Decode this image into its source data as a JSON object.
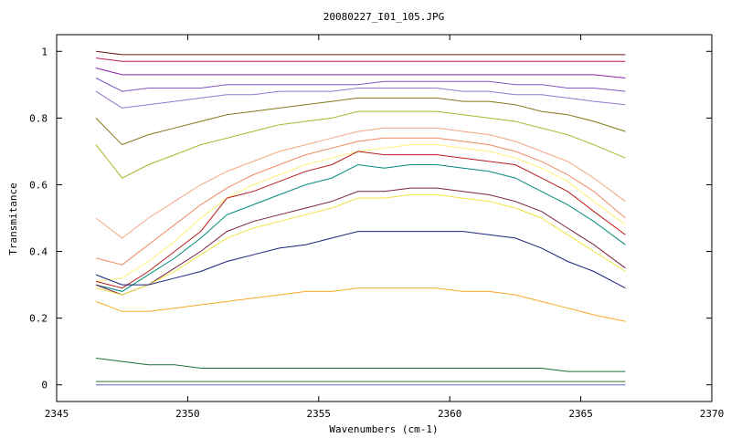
{
  "chart_data": {
    "type": "line",
    "title": "20080227_I01_105.JPG",
    "xlabel": "Wavenumbers (cm-1)",
    "ylabel": "Transmitance",
    "xlim": [
      2345,
      2370
    ],
    "ylim": [
      -0.05,
      1.05
    ],
    "x_ticks": [
      "2345",
      "2350",
      "2355",
      "2360",
      "2365",
      "2370"
    ],
    "y_ticks": [
      "0",
      "0.2",
      "0.4",
      "0.6",
      "0.8",
      "1"
    ],
    "grid": false,
    "legend": "none",
    "x": [
      2346.5,
      2347.5,
      2348.5,
      2349.5,
      2350.5,
      2351.5,
      2352.5,
      2353.5,
      2354.5,
      2355.5,
      2356.5,
      2357.5,
      2358.5,
      2359.5,
      2360.5,
      2361.5,
      2362.5,
      2363.5,
      2364.5,
      2365.5,
      2366.7
    ],
    "series": [
      {
        "color": "#6a1b1b",
        "values": [
          1.0,
          0.99,
          0.99,
          0.99,
          0.99,
          0.99,
          0.99,
          0.99,
          0.99,
          0.99,
          0.99,
          0.99,
          0.99,
          0.99,
          0.99,
          0.99,
          0.99,
          0.99,
          0.99,
          0.99,
          0.99
        ]
      },
      {
        "color": "#c2185b",
        "values": [
          0.98,
          0.97,
          0.97,
          0.97,
          0.97,
          0.97,
          0.97,
          0.97,
          0.97,
          0.97,
          0.97,
          0.97,
          0.97,
          0.97,
          0.97,
          0.97,
          0.97,
          0.97,
          0.97,
          0.97,
          0.97
        ]
      },
      {
        "color": "#8e24aa",
        "values": [
          0.95,
          0.93,
          0.93,
          0.93,
          0.93,
          0.93,
          0.93,
          0.93,
          0.93,
          0.93,
          0.93,
          0.93,
          0.93,
          0.93,
          0.93,
          0.93,
          0.93,
          0.93,
          0.93,
          0.93,
          0.92
        ]
      },
      {
        "color": "#7e57c2",
        "values": [
          0.92,
          0.88,
          0.89,
          0.89,
          0.89,
          0.9,
          0.9,
          0.9,
          0.9,
          0.9,
          0.9,
          0.91,
          0.91,
          0.91,
          0.91,
          0.91,
          0.9,
          0.9,
          0.89,
          0.89,
          0.88
        ]
      },
      {
        "color": "#9575cd",
        "values": [
          0.88,
          0.83,
          0.84,
          0.85,
          0.86,
          0.87,
          0.87,
          0.88,
          0.88,
          0.88,
          0.89,
          0.89,
          0.89,
          0.89,
          0.88,
          0.88,
          0.87,
          0.87,
          0.86,
          0.85,
          0.84
        ]
      },
      {
        "color": "#827717",
        "values": [
          0.8,
          0.72,
          0.75,
          0.77,
          0.79,
          0.81,
          0.82,
          0.83,
          0.84,
          0.85,
          0.86,
          0.86,
          0.86,
          0.86,
          0.85,
          0.85,
          0.84,
          0.82,
          0.81,
          0.79,
          0.76
        ]
      },
      {
        "color": "#afb42b",
        "values": [
          0.72,
          0.62,
          0.66,
          0.69,
          0.72,
          0.74,
          0.76,
          0.78,
          0.79,
          0.8,
          0.82,
          0.82,
          0.82,
          0.82,
          0.81,
          0.8,
          0.79,
          0.77,
          0.75,
          0.72,
          0.68
        ]
      },
      {
        "color": "#f4a582",
        "values": [
          0.5,
          0.44,
          0.5,
          0.55,
          0.6,
          0.64,
          0.67,
          0.7,
          0.72,
          0.74,
          0.76,
          0.77,
          0.77,
          0.77,
          0.76,
          0.75,
          0.73,
          0.7,
          0.67,
          0.62,
          0.55
        ]
      },
      {
        "color": "#ef8a62",
        "values": [
          0.38,
          0.36,
          0.42,
          0.48,
          0.54,
          0.59,
          0.63,
          0.66,
          0.69,
          0.71,
          0.73,
          0.74,
          0.74,
          0.74,
          0.73,
          0.72,
          0.7,
          0.67,
          0.63,
          0.58,
          0.5
        ]
      },
      {
        "color": "#fff176",
        "values": [
          0.31,
          0.32,
          0.37,
          0.43,
          0.5,
          0.56,
          0.6,
          0.63,
          0.66,
          0.68,
          0.7,
          0.71,
          0.72,
          0.72,
          0.71,
          0.7,
          0.68,
          0.65,
          0.61,
          0.55,
          0.48
        ]
      },
      {
        "color": "#b71c1c",
        "values": [
          0.31,
          0.29,
          0.34,
          0.4,
          0.46,
          0.56,
          0.58,
          0.61,
          0.64,
          0.66,
          0.7,
          0.69,
          0.69,
          0.69,
          0.68,
          0.67,
          0.66,
          0.62,
          0.58,
          0.52,
          0.45
        ]
      },
      {
        "color": "#00897b",
        "values": [
          0.3,
          0.28,
          0.33,
          0.38,
          0.44,
          0.51,
          0.54,
          0.57,
          0.6,
          0.62,
          0.66,
          0.65,
          0.66,
          0.66,
          0.65,
          0.64,
          0.62,
          0.58,
          0.54,
          0.49,
          0.42
        ]
      },
      {
        "color": "#7b1f3f",
        "values": [
          0.3,
          0.27,
          0.3,
          0.35,
          0.4,
          0.46,
          0.49,
          0.51,
          0.53,
          0.55,
          0.58,
          0.58,
          0.59,
          0.59,
          0.58,
          0.57,
          0.55,
          0.52,
          0.47,
          0.42,
          0.35
        ]
      },
      {
        "color": "#f0e442",
        "values": [
          0.29,
          0.27,
          0.3,
          0.34,
          0.39,
          0.44,
          0.47,
          0.49,
          0.51,
          0.53,
          0.56,
          0.56,
          0.57,
          0.57,
          0.56,
          0.55,
          0.53,
          0.5,
          0.45,
          0.4,
          0.34
        ]
      },
      {
        "color": "#1a237e",
        "values": [
          0.33,
          0.3,
          0.3,
          0.32,
          0.34,
          0.37,
          0.39,
          0.41,
          0.42,
          0.44,
          0.46,
          0.46,
          0.46,
          0.46,
          0.46,
          0.45,
          0.44,
          0.41,
          0.37,
          0.34,
          0.29
        ]
      },
      {
        "color": "#f9a825",
        "values": [
          0.25,
          0.22,
          0.22,
          0.23,
          0.24,
          0.25,
          0.26,
          0.27,
          0.28,
          0.28,
          0.29,
          0.29,
          0.29,
          0.29,
          0.28,
          0.28,
          0.27,
          0.25,
          0.23,
          0.21,
          0.19
        ]
      },
      {
        "color": "#1b6e3b",
        "values": [
          0.08,
          0.07,
          0.06,
          0.06,
          0.05,
          0.05,
          0.05,
          0.05,
          0.05,
          0.05,
          0.05,
          0.05,
          0.05,
          0.05,
          0.05,
          0.05,
          0.05,
          0.05,
          0.04,
          0.04,
          0.04
        ]
      },
      {
        "color": "#2e7d32",
        "values": [
          0.01,
          0.01,
          0.01,
          0.01,
          0.01,
          0.01,
          0.01,
          0.01,
          0.01,
          0.01,
          0.01,
          0.01,
          0.01,
          0.01,
          0.01,
          0.01,
          0.01,
          0.01,
          0.01,
          0.01,
          0.01
        ]
      },
      {
        "color": "#5c6bc0",
        "values": [
          0.0,
          0.0,
          0.0,
          0.0,
          0.0,
          0.0,
          0.0,
          0.0,
          0.0,
          0.0,
          0.0,
          0.0,
          0.0,
          0.0,
          0.0,
          0.0,
          0.0,
          0.0,
          0.0,
          0.0,
          0.0
        ]
      }
    ]
  }
}
